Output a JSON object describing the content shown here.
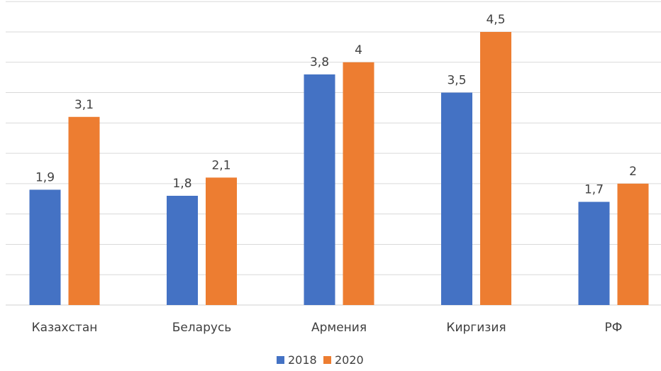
{
  "chart_data": {
    "type": "bar",
    "categories": [
      "Казахстан",
      "Беларусь",
      "Армения",
      "Киргизия",
      "РФ"
    ],
    "series": [
      {
        "name": "2018",
        "values": [
          1.9,
          1.8,
          3.8,
          3.5,
          1.7
        ],
        "labels": [
          "1,9",
          "1,8",
          "3,8",
          "3,5",
          "1,7"
        ],
        "color": "#4472C4"
      },
      {
        "name": "2020",
        "values": [
          3.1,
          2.1,
          4,
          4.5,
          2
        ],
        "labels": [
          "3,1",
          "2,1",
          "4",
          "4,5",
          "2"
        ],
        "color": "#ED7D31"
      }
    ],
    "ylim": [
      0,
      4.5
    ],
    "gridlines": true,
    "legend_position": "bottom"
  }
}
